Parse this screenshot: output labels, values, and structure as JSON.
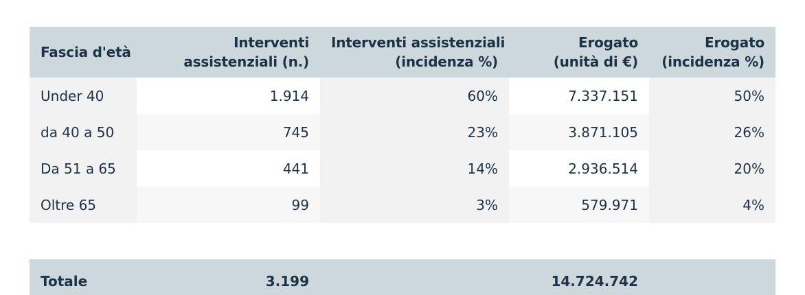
{
  "header": {
    "col0": [
      "Fascia d'età"
    ],
    "col1": [
      "Interventi",
      "assistenziali (n.)"
    ],
    "col2": [
      "Interventi assistenziali",
      "(incidenza %)"
    ],
    "col3": [
      "Erogato",
      "(unità di €)"
    ],
    "col4": [
      "Erogato",
      "(incidenza %)"
    ]
  },
  "rows": [
    {
      "fascia": "Under 40",
      "interventi_n": "1.914",
      "interventi_pct": "60%",
      "erogato_eur": "7.337.151",
      "erogato_pct": "50%"
    },
    {
      "fascia": "da 40 a 50",
      "interventi_n": "745",
      "interventi_pct": "23%",
      "erogato_eur": "3.871.105",
      "erogato_pct": "26%"
    },
    {
      "fascia": "Da 51 a 65",
      "interventi_n": "441",
      "interventi_pct": "14%",
      "erogato_eur": "2.936.514",
      "erogato_pct": "20%"
    },
    {
      "fascia": "Oltre 65",
      "interventi_n": "99",
      "interventi_pct": "3%",
      "erogato_eur": "579.971",
      "erogato_pct": "4%"
    }
  ],
  "total": {
    "label": "Totale",
    "interventi_n": "3.199",
    "interventi_pct": "",
    "erogato_eur": "14.724.742",
    "erogato_pct": ""
  },
  "colors": {
    "header_bg": "#cdd8dc",
    "row_band": "#f2f2f2",
    "text": "#1e3246"
  }
}
